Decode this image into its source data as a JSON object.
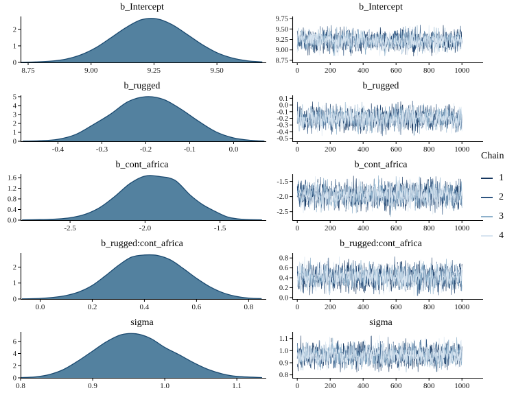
{
  "figure_background": "#ffffff",
  "style": {
    "density_fill": "#53819f",
    "density_stroke": "#1b4a70",
    "axis_color": "#000000",
    "text_color": "#111111"
  },
  "legend": {
    "title": "Chain",
    "items": [
      {
        "label": "1",
        "color": "#16365f"
      },
      {
        "label": "2",
        "color": "#2e5480"
      },
      {
        "label": "3",
        "color": "#8eb1cb"
      },
      {
        "label": "4",
        "color": "#d7e4f0"
      }
    ]
  },
  "chart_data": [
    {
      "id": "density-b_Intercept",
      "type": "area",
      "title": "b_Intercept",
      "xlim": [
        8.72,
        9.685
      ],
      "ylim": [
        0,
        2.78
      ],
      "x_ticks": [
        8.75,
        9.0,
        9.25,
        9.5
      ],
      "x_tick_labels": [
        "8.75",
        "9.00",
        "9.25",
        "9.50"
      ],
      "y_ticks": [
        0,
        1,
        2
      ],
      "y_tick_labels": [
        "0",
        "1",
        "2"
      ],
      "x": [
        8.72,
        8.78,
        8.84,
        8.9,
        8.96,
        9.02,
        9.08,
        9.14,
        9.2,
        9.26,
        9.32,
        9.38,
        9.44,
        9.5,
        9.56,
        9.62,
        9.68
      ],
      "y": [
        0.01,
        0.03,
        0.08,
        0.2,
        0.46,
        0.9,
        1.5,
        2.12,
        2.58,
        2.64,
        2.3,
        1.71,
        1.09,
        0.59,
        0.27,
        0.1,
        0.03
      ]
    },
    {
      "id": "trace-b_Intercept",
      "type": "line",
      "title": "b_Intercept",
      "iterations": 1000,
      "xlim": [
        -30,
        1045
      ],
      "ylim": [
        8.7,
        9.8
      ],
      "x_ticks": [
        0,
        200,
        400,
        600,
        800,
        1000
      ],
      "x_tick_labels": [
        "0",
        "200",
        "400",
        "600",
        "800",
        "1000"
      ],
      "y_ticks": [
        8.75,
        9.0,
        9.25,
        9.5,
        9.75
      ],
      "y_tick_labels": [
        "8.75",
        "9.00",
        "9.25",
        "9.50",
        "9.75"
      ],
      "series": [
        {
          "name": "1",
          "color": "#16365f",
          "center": 9.22,
          "sd": 0.13,
          "min": 8.84,
          "max": 9.6
        },
        {
          "name": "2",
          "color": "#2e5480",
          "center": 9.22,
          "sd": 0.13,
          "min": 8.84,
          "max": 9.6
        },
        {
          "name": "3",
          "color": "#8eb1cb",
          "center": 9.22,
          "sd": 0.13,
          "min": 8.84,
          "max": 9.6
        },
        {
          "name": "4",
          "color": "#d7e4f0",
          "center": 9.22,
          "sd": 0.13,
          "min": 8.84,
          "max": 9.6
        }
      ]
    },
    {
      "id": "density-b_rugged",
      "type": "area",
      "title": "b_rugged",
      "xlim": [
        -0.485,
        0.068
      ],
      "ylim": [
        0,
        5.15
      ],
      "x_ticks": [
        -0.4,
        -0.3,
        -0.2,
        -0.1,
        0.0
      ],
      "x_tick_labels": [
        "-0.4",
        "-0.3",
        "-0.2",
        "-0.1",
        "0.0"
      ],
      "y_ticks": [
        0,
        1,
        2,
        3,
        4,
        5
      ],
      "y_tick_labels": [
        "0",
        "1",
        "2",
        "3",
        "4",
        "5"
      ],
      "x": [
        -0.48,
        -0.44,
        -0.4,
        -0.36,
        -0.32,
        -0.28,
        -0.24,
        -0.2,
        -0.16,
        -0.12,
        -0.08,
        -0.04,
        0.0,
        0.04,
        0.07
      ],
      "y": [
        0.02,
        0.06,
        0.22,
        0.75,
        1.85,
        3.05,
        4.45,
        5.0,
        4.7,
        3.6,
        2.25,
        1.05,
        0.38,
        0.1,
        0.03
      ]
    },
    {
      "id": "trace-b_rugged",
      "type": "line",
      "title": "b_rugged",
      "iterations": 1000,
      "xlim": [
        -30,
        1045
      ],
      "ylim": [
        -0.545,
        0.145
      ],
      "x_ticks": [
        0,
        200,
        400,
        600,
        800,
        1000
      ],
      "x_tick_labels": [
        "0",
        "200",
        "400",
        "600",
        "800",
        "1000"
      ],
      "y_ticks": [
        0.1,
        0.0,
        -0.1,
        -0.2,
        -0.3,
        -0.4,
        -0.5
      ],
      "y_tick_labels": [
        "0.1",
        "0.0",
        "-0.1",
        "-0.2",
        "-0.3",
        "-0.4",
        "-0.5"
      ],
      "series": [
        {
          "name": "1",
          "color": "#16365f",
          "center": -0.2,
          "sd": 0.088,
          "min": -0.47,
          "max": 0.07
        },
        {
          "name": "2",
          "color": "#2e5480",
          "center": -0.2,
          "sd": 0.088,
          "min": -0.47,
          "max": 0.07
        },
        {
          "name": "3",
          "color": "#8eb1cb",
          "center": -0.2,
          "sd": 0.088,
          "min": -0.47,
          "max": 0.07
        },
        {
          "name": "4",
          "color": "#d7e4f0",
          "center": -0.2,
          "sd": 0.088,
          "min": -0.47,
          "max": 0.07
        }
      ]
    },
    {
      "id": "density-b_cont_africa",
      "type": "area",
      "title": "b_cont_africa",
      "xlim": [
        -2.83,
        -1.21
      ],
      "ylim": [
        0,
        1.73
      ],
      "x_ticks": [
        -2.5,
        -2.0,
        -1.5
      ],
      "x_tick_labels": [
        "-2.5",
        "-2.0",
        "-1.5"
      ],
      "y_ticks": [
        0.0,
        0.4,
        0.8,
        1.2,
        1.6
      ],
      "y_tick_labels": [
        "0.0",
        "0.4",
        "0.8",
        "1.2",
        "1.6"
      ],
      "x": [
        -2.82,
        -2.7,
        -2.6,
        -2.5,
        -2.4,
        -2.3,
        -2.2,
        -2.1,
        -2.0,
        -1.9,
        -1.8,
        -1.7,
        -1.62,
        -1.55,
        -1.45,
        -1.35,
        -1.22
      ],
      "y": [
        0.01,
        0.02,
        0.04,
        0.09,
        0.22,
        0.48,
        0.9,
        1.38,
        1.66,
        1.64,
        1.5,
        0.95,
        0.6,
        0.38,
        0.12,
        0.03,
        0.01
      ]
    },
    {
      "id": "trace-b_cont_africa",
      "type": "line",
      "title": "b_cont_africa",
      "iterations": 1000,
      "xlim": [
        -30,
        1045
      ],
      "ylim": [
        -2.78,
        -1.26
      ],
      "x_ticks": [
        0,
        200,
        400,
        600,
        800,
        1000
      ],
      "x_tick_labels": [
        "0",
        "200",
        "400",
        "600",
        "800",
        "1000"
      ],
      "y_ticks": [
        -1.5,
        -2.0,
        -2.5
      ],
      "y_tick_labels": [
        "-1.5",
        "-2.0",
        "-2.5"
      ],
      "series": [
        {
          "name": "1",
          "color": "#16365f",
          "center": -1.95,
          "sd": 0.225,
          "min": -2.68,
          "max": -1.3
        },
        {
          "name": "2",
          "color": "#2e5480",
          "center": -1.95,
          "sd": 0.225,
          "min": -2.68,
          "max": -1.3
        },
        {
          "name": "3",
          "color": "#8eb1cb",
          "center": -1.95,
          "sd": 0.225,
          "min": -2.68,
          "max": -1.3
        },
        {
          "name": "4",
          "color": "#d7e4f0",
          "center": -1.95,
          "sd": 0.225,
          "min": -2.68,
          "max": -1.3
        }
      ]
    },
    {
      "id": "density-b_rugged:cont_africa",
      "type": "area",
      "title": "b_rugged:cont_africa",
      "xlim": [
        -0.075,
        0.857
      ],
      "ylim": [
        0,
        2.88
      ],
      "x_ticks": [
        0.0,
        0.2,
        0.4,
        0.6,
        0.8
      ],
      "x_tick_labels": [
        "0.0",
        "0.2",
        "0.4",
        "0.6",
        "0.8"
      ],
      "y_ticks": [
        0,
        1,
        2
      ],
      "y_tick_labels": [
        "0",
        "1",
        "2"
      ],
      "x": [
        -0.07,
        0.0,
        0.05,
        0.1,
        0.15,
        0.2,
        0.25,
        0.3,
        0.35,
        0.4,
        0.45,
        0.5,
        0.55,
        0.6,
        0.65,
        0.7,
        0.75,
        0.8,
        0.85
      ],
      "y": [
        0.01,
        0.04,
        0.1,
        0.22,
        0.45,
        0.85,
        1.45,
        2.1,
        2.62,
        2.76,
        2.73,
        2.45,
        1.9,
        1.3,
        0.78,
        0.4,
        0.17,
        0.06,
        0.02
      ]
    },
    {
      "id": "trace-b_rugged:cont_africa",
      "type": "line",
      "title": "b_rugged:cont_africa",
      "iterations": 1000,
      "xlim": [
        -30,
        1045
      ],
      "ylim": [
        -0.03,
        0.9
      ],
      "x_ticks": [
        0,
        200,
        400,
        600,
        800,
        1000
      ],
      "x_tick_labels": [
        "0",
        "200",
        "400",
        "600",
        "800",
        "1000"
      ],
      "y_ticks": [
        0.8,
        0.6,
        0.4,
        0.2,
        0.0
      ],
      "y_tick_labels": [
        "0.8",
        "0.6",
        "0.4",
        "0.2",
        "0.0"
      ],
      "series": [
        {
          "name": "1",
          "color": "#16365f",
          "center": 0.42,
          "sd": 0.135,
          "min": 0.03,
          "max": 0.83
        },
        {
          "name": "2",
          "color": "#2e5480",
          "center": 0.42,
          "sd": 0.135,
          "min": 0.03,
          "max": 0.83
        },
        {
          "name": "3",
          "color": "#8eb1cb",
          "center": 0.42,
          "sd": 0.135,
          "min": 0.03,
          "max": 0.83
        },
        {
          "name": "4",
          "color": "#d7e4f0",
          "center": 0.42,
          "sd": 0.135,
          "min": 0.03,
          "max": 0.83
        }
      ]
    },
    {
      "id": "density-sigma",
      "type": "area",
      "title": "sigma",
      "xlim": [
        0.8,
        1.137
      ],
      "ylim": [
        0,
        7.55
      ],
      "x_ticks": [
        0.8,
        0.9,
        1.0,
        1.1
      ],
      "x_tick_labels": [
        "0.8",
        "0.9",
        "1.0",
        "1.1"
      ],
      "y_ticks": [
        0,
        2,
        4,
        6
      ],
      "y_tick_labels": [
        "0",
        "2",
        "4",
        "6"
      ],
      "x": [
        0.8,
        0.82,
        0.84,
        0.86,
        0.88,
        0.9,
        0.92,
        0.94,
        0.96,
        0.98,
        1.0,
        1.02,
        1.04,
        1.06,
        1.08,
        1.1,
        1.135
      ],
      "y": [
        0.05,
        0.15,
        0.55,
        1.4,
        2.8,
        4.4,
        6.0,
        7.1,
        7.25,
        6.5,
        5.0,
        3.8,
        2.5,
        1.4,
        0.65,
        0.25,
        0.04
      ]
    },
    {
      "id": "trace-sigma",
      "type": "line",
      "title": "sigma",
      "iterations": 1000,
      "xlim": [
        -30,
        1045
      ],
      "ylim": [
        0.775,
        1.155
      ],
      "x_ticks": [
        0,
        200,
        400,
        600,
        800,
        1000
      ],
      "x_tick_labels": [
        "0",
        "200",
        "400",
        "600",
        "800",
        "1000"
      ],
      "y_ticks": [
        1.1,
        1.0,
        0.9,
        0.8
      ],
      "y_tick_labels": [
        "1.1",
        "1.0",
        "0.9",
        "0.8"
      ],
      "series": [
        {
          "name": "1",
          "color": "#16365f",
          "center": 0.962,
          "sd": 0.052,
          "min": 0.82,
          "max": 1.13
        },
        {
          "name": "2",
          "color": "#2e5480",
          "center": 0.962,
          "sd": 0.052,
          "min": 0.82,
          "max": 1.13
        },
        {
          "name": "3",
          "color": "#8eb1cb",
          "center": 0.962,
          "sd": 0.052,
          "min": 0.82,
          "max": 1.13
        },
        {
          "name": "4",
          "color": "#d7e4f0",
          "center": 0.962,
          "sd": 0.052,
          "min": 0.82,
          "max": 1.13
        }
      ]
    }
  ]
}
